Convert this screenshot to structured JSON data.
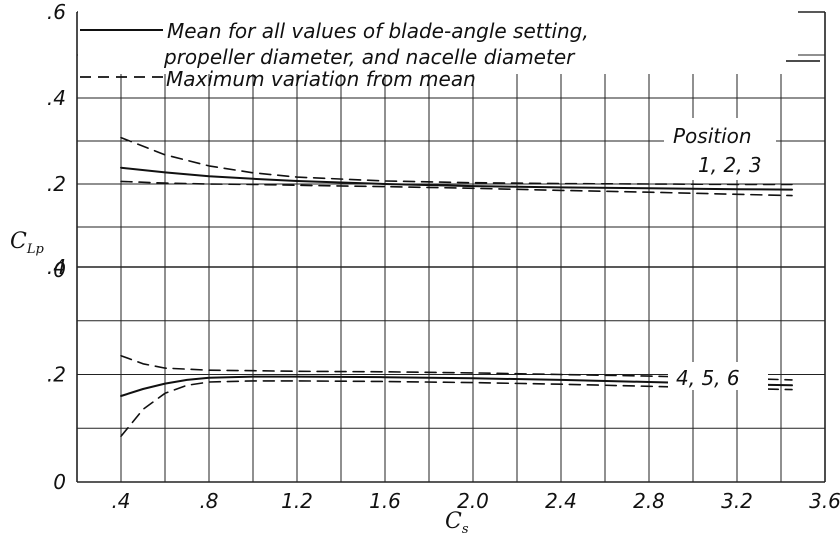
{
  "chart_data": {
    "type": "line",
    "legend": {
      "mean_label_line1": "Mean for all values of blade-angle setting,",
      "mean_label_line2": "propeller diameter, and nacelle diameter",
      "variation_label": "Maximum variation from mean",
      "placement": "top"
    },
    "xlabel": "C",
    "xlabel_sub": "s",
    "ylabel": "C",
    "ylabel_sub": "Lp",
    "xlim": [
      0.2,
      3.6
    ],
    "x_ticks": [
      {
        "value": 0.4,
        "label": ".4"
      },
      {
        "value": 0.8,
        "label": ".8"
      },
      {
        "value": 1.2,
        "label": "1.2"
      },
      {
        "value": 1.6,
        "label": "1.6"
      },
      {
        "value": 2.0,
        "label": "2.0"
      },
      {
        "value": 2.4,
        "label": "2.4"
      },
      {
        "value": 2.8,
        "label": "2.8"
      },
      {
        "value": 3.2,
        "label": "3.2"
      },
      {
        "value": 3.6,
        "label": "3.6"
      }
    ],
    "origin_label": "0",
    "grid": true,
    "panels": [
      {
        "name": "upper",
        "position_label_line1": "Position",
        "position_label_line2": "1, 2, 3",
        "ylim": [
          0,
          0.6
        ],
        "y_ticks": [
          {
            "value": 0.2,
            "label": ".2"
          },
          {
            "value": 0.4,
            "label": ".4"
          },
          {
            "value": 0.6,
            "label": ".6"
          }
        ],
        "series": [
          {
            "style": "mean",
            "x": [
              0.4,
              0.6,
              0.8,
              1.0,
              1.2,
              1.6,
              2.0,
              2.4,
              2.8,
              3.2,
              3.45
            ],
            "y": [
              0.238,
              0.227,
              0.218,
              0.212,
              0.207,
              0.2,
              0.195,
              0.192,
              0.19,
              0.188,
              0.187
            ]
          },
          {
            "style": "variation-upper",
            "x": [
              0.4,
              0.6,
              0.8,
              1.0,
              1.2,
              1.6,
              2.0,
              2.4,
              2.8,
              3.2,
              3.45
            ],
            "y": [
              0.308,
              0.268,
              0.242,
              0.226,
              0.216,
              0.207,
              0.203,
              0.201,
              0.2,
              0.199,
              0.199
            ]
          },
          {
            "style": "variation-lower",
            "x": [
              0.4,
              0.6,
              0.8,
              1.0,
              1.2,
              1.6,
              2.0,
              2.4,
              2.8,
              3.2,
              3.45
            ],
            "y": [
              0.206,
              0.202,
              0.2,
              0.199,
              0.197,
              0.194,
              0.19,
              0.185,
              0.181,
              0.176,
              0.173
            ]
          }
        ]
      },
      {
        "name": "lower",
        "position_label_line1": "4, 5, 6",
        "ylim": [
          0,
          0.4
        ],
        "y_ticks": [
          {
            "value": 0.2,
            "label": ".2"
          },
          {
            "value": 0.4,
            "label": ".4"
          }
        ],
        "series": [
          {
            "style": "mean",
            "x": [
              0.4,
              0.5,
              0.6,
              0.7,
              0.8,
              1.0,
              1.2,
              1.6,
              2.0,
              2.4,
              2.8,
              3.2,
              3.45
            ],
            "y": [
              0.16,
              0.173,
              0.183,
              0.19,
              0.194,
              0.196,
              0.196,
              0.195,
              0.193,
              0.19,
              0.186,
              0.182,
              0.18
            ]
          },
          {
            "style": "variation-upper",
            "x": [
              0.4,
              0.5,
              0.6,
              0.8,
              1.0,
              1.2,
              1.6,
              2.0,
              2.4,
              2.8,
              3.2,
              3.45
            ],
            "y": [
              0.235,
              0.22,
              0.212,
              0.208,
              0.207,
              0.206,
              0.205,
              0.203,
              0.2,
              0.197,
              0.193,
              0.19
            ]
          },
          {
            "style": "variation-lower",
            "x": [
              0.4,
              0.45,
              0.5,
              0.6,
              0.7,
              0.8,
              1.0,
              1.2,
              1.6,
              2.0,
              2.4,
              2.8,
              3.2,
              3.45
            ],
            "y": [
              0.085,
              0.11,
              0.135,
              0.165,
              0.18,
              0.186,
              0.188,
              0.188,
              0.187,
              0.185,
              0.182,
              0.178,
              0.174,
              0.172
            ]
          }
        ]
      }
    ]
  }
}
